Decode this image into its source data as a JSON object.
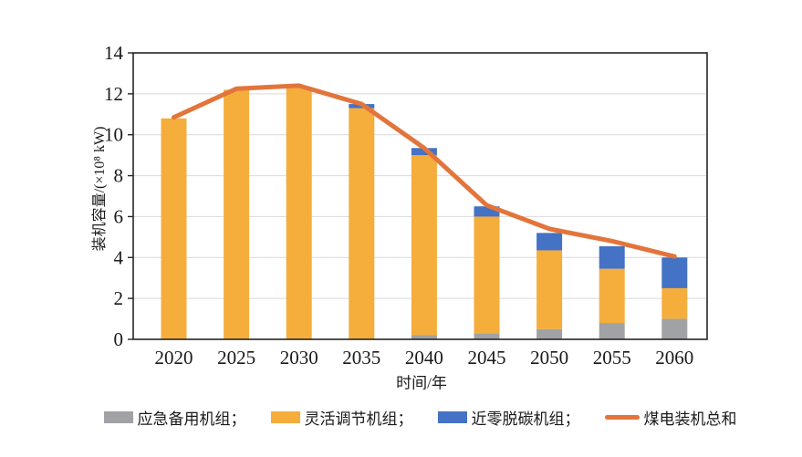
{
  "legend": {
    "items": [
      {
        "label": "应急备用机组；",
        "color": "#A0A2A5",
        "swatch": "rect"
      },
      {
        "label": "灵活调节机组；",
        "color": "#F5AD3C",
        "swatch": "rect"
      },
      {
        "label": "近零脱碳机组；",
        "color": "#4472C4",
        "swatch": "rect"
      },
      {
        "label": "煤电装机总和",
        "color": "#E2753B",
        "swatch": "line"
      }
    ]
  },
  "chart_data": {
    "type": "bar",
    "subtype": "stacked-bars-with-total-line",
    "categories": [
      "2020",
      "2025",
      "2030",
      "2035",
      "2040",
      "2045",
      "2050",
      "2055",
      "2060"
    ],
    "series": [
      {
        "name": "应急备用机组",
        "type": "bar",
        "color": "#A0A2A5",
        "values": [
          0,
          0,
          0,
          0,
          0.2,
          0.3,
          0.5,
          0.8,
          1.0
        ]
      },
      {
        "name": "灵活调节机组",
        "type": "bar",
        "color": "#F5AD3C",
        "values": [
          10.8,
          12.2,
          12.3,
          11.3,
          8.8,
          5.7,
          3.85,
          2.65,
          1.5
        ]
      },
      {
        "name": "近零脱碳机组",
        "type": "bar",
        "color": "#4472C4",
        "values": [
          0,
          0,
          0,
          0.2,
          0.35,
          0.5,
          0.85,
          1.1,
          1.5
        ]
      },
      {
        "name": "煤电装机总和",
        "type": "line",
        "color": "#E2753B",
        "values": [
          10.85,
          12.25,
          12.4,
          11.5,
          9.35,
          6.55,
          5.4,
          4.8,
          4.05
        ]
      }
    ],
    "stack_totals": [
      10.8,
      12.2,
      12.3,
      11.5,
      9.35,
      6.5,
      5.2,
      4.55,
      4.0
    ],
    "title": "",
    "xlabel": "时间/年",
    "ylabel": "装机容量/(×10⁸ kW)",
    "ylim": [
      0,
      14
    ],
    "yticks": [
      0,
      2,
      4,
      6,
      8,
      10,
      12,
      14
    ],
    "grid": true,
    "legend_position": "bottom",
    "axis_color": "#262626",
    "gridline_color": "#d9d9d9",
    "tick_label_color": "#1a1a1a"
  }
}
